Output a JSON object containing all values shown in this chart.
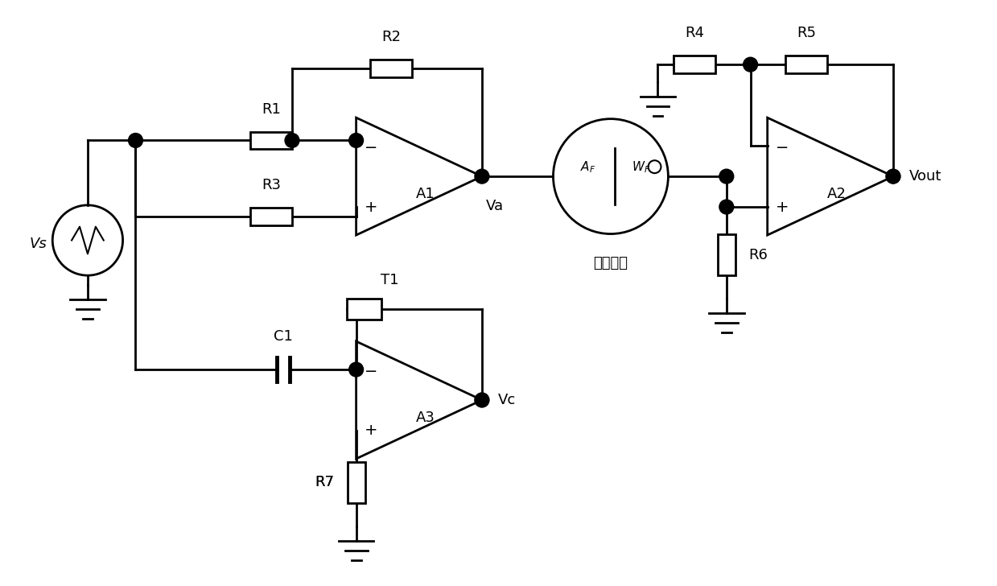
{
  "bg_color": "#ffffff",
  "lw": 2.0,
  "lw_thin": 1.5,
  "figsize": [
    12.39,
    7.28
  ],
  "dpi": 100,
  "xlim": [
    0,
    12.39
  ],
  "ylim": [
    0,
    7.28
  ],
  "labels": {
    "Vs": "Vs",
    "Va": "Va",
    "Vc": "Vc",
    "Vout": "Vout",
    "R1": "R1",
    "R2": "R2",
    "R3": "R3",
    "R4": "R4",
    "R5": "R5",
    "R6": "R6",
    "R7": "R7",
    "C1": "C1",
    "T1": "T1",
    "A1": "A1",
    "A2": "A2",
    "A3": "A3",
    "cell_label": "电化学池",
    "AF": "A",
    "WF": "W"
  },
  "fontsize": 13
}
